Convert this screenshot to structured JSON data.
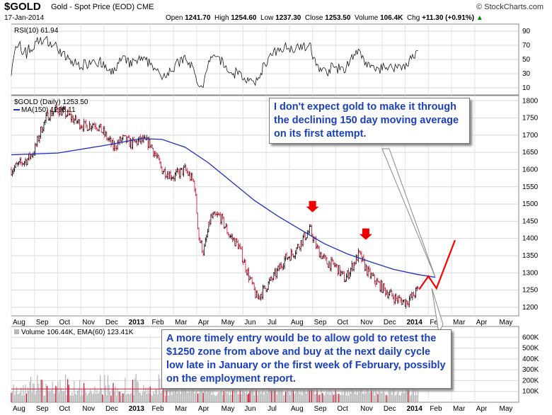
{
  "header": {
    "symbol": "$GOLD",
    "description": "Gold - Spot Price (EOD)",
    "exchange": "CME",
    "date": "17-Jan-2014",
    "open_label": "Open",
    "open": "1241.70",
    "high_label": "High",
    "high": "1254.60",
    "low_label": "Low",
    "low": "1237.30",
    "close_label": "Close",
    "close": "1253.50",
    "volume_label": "Volume",
    "volume": "106.4K",
    "chg_label": "Chg",
    "chg": "+11.30 (+0.91%)",
    "brand": "© StockCharts.com"
  },
  "colors": {
    "up": "#000000",
    "down": "#d01030",
    "ma": "#2030c0",
    "annot": "#1a3fbf",
    "arrow": "#ee0000",
    "projection": "#ff0000",
    "rsi": "#1a1a1a",
    "volume": "#b8b8b8"
  },
  "annotations": {
    "top_note": "I don't expect gold to make it through the declining 150 day moving average on its first attempt.",
    "bottom_note": "A more timely entry would be to allow gold to retest the $1250 zone from above and buy at the next daily cycle low late in January or the first week of February, possibly on the employment report."
  },
  "chart_data": [
    {
      "type": "line",
      "title": "RSI(10) 61.94",
      "y_ticks": [
        10,
        30,
        50,
        70,
        90
      ],
      "ylim": [
        0,
        100
      ]
    },
    {
      "type": "candlestick",
      "title": "$GOLD (Daily) 1253.50",
      "legend": [
        "MA(150) 1295.11"
      ],
      "x_ticks": [
        "Aug",
        "Sep",
        "Oct",
        "Nov",
        "Dec",
        "2013",
        "Feb",
        "Mar",
        "Apr",
        "May",
        "Jun",
        "Jul",
        "Aug",
        "Sep",
        "Oct",
        "Nov",
        "Dec",
        "2014",
        "Feb",
        "Mar",
        "Apr",
        "May"
      ],
      "y_ticks": [
        1200,
        1250,
        1300,
        1350,
        1400,
        1450,
        1500,
        1550,
        1600,
        1650,
        1700,
        1750,
        1800
      ],
      "ylim": [
        1175,
        1815
      ],
      "price_path": [
        {
          "m": 0,
          "v": 1600
        },
        {
          "m": 0.35,
          "v": 1615
        },
        {
          "m": 0.7,
          "v": 1630
        },
        {
          "m": 1.0,
          "v": 1655
        },
        {
          "m": 1.3,
          "v": 1720
        },
        {
          "m": 1.6,
          "v": 1760
        },
        {
          "m": 2.0,
          "v": 1775
        },
        {
          "m": 2.4,
          "v": 1760
        },
        {
          "m": 2.8,
          "v": 1740
        },
        {
          "m": 3.2,
          "v": 1725
        },
        {
          "m": 3.6,
          "v": 1735
        },
        {
          "m": 4.0,
          "v": 1705
        },
        {
          "m": 4.4,
          "v": 1665
        },
        {
          "m": 4.8,
          "v": 1690
        },
        {
          "m": 5.2,
          "v": 1675
        },
        {
          "m": 5.6,
          "v": 1685
        },
        {
          "m": 6.0,
          "v": 1675
        },
        {
          "m": 6.5,
          "v": 1600
        },
        {
          "m": 7.0,
          "v": 1580
        },
        {
          "m": 7.5,
          "v": 1600
        },
        {
          "m": 7.9,
          "v": 1560
        },
        {
          "m": 8.1,
          "v": 1400
        },
        {
          "m": 8.3,
          "v": 1360
        },
        {
          "m": 8.6,
          "v": 1460
        },
        {
          "m": 9.0,
          "v": 1465
        },
        {
          "m": 9.4,
          "v": 1410
        },
        {
          "m": 9.8,
          "v": 1380
        },
        {
          "m": 10.2,
          "v": 1300
        },
        {
          "m": 10.6,
          "v": 1225
        },
        {
          "m": 11.0,
          "v": 1260
        },
        {
          "m": 11.4,
          "v": 1295
        },
        {
          "m": 11.8,
          "v": 1340
        },
        {
          "m": 12.2,
          "v": 1360
        },
        {
          "m": 12.6,
          "v": 1400
        },
        {
          "m": 12.9,
          "v": 1425
        },
        {
          "m": 13.2,
          "v": 1370
        },
        {
          "m": 13.6,
          "v": 1330
        },
        {
          "m": 14.0,
          "v": 1320
        },
        {
          "m": 14.4,
          "v": 1280
        },
        {
          "m": 14.8,
          "v": 1330
        },
        {
          "m": 15.0,
          "v": 1355
        },
        {
          "m": 15.4,
          "v": 1300
        },
        {
          "m": 15.8,
          "v": 1270
        },
        {
          "m": 16.2,
          "v": 1245
        },
        {
          "m": 16.6,
          "v": 1225
        },
        {
          "m": 17.0,
          "v": 1215
        },
        {
          "m": 17.3,
          "v": 1230
        },
        {
          "m": 17.55,
          "v": 1252
        }
      ],
      "ma150_path": [
        {
          "m": 0,
          "v": 1643
        },
        {
          "m": 2,
          "v": 1648
        },
        {
          "m": 4,
          "v": 1670
        },
        {
          "m": 5.6,
          "v": 1690
        },
        {
          "m": 6.5,
          "v": 1688
        },
        {
          "m": 7.5,
          "v": 1665
        },
        {
          "m": 8.5,
          "v": 1620
        },
        {
          "m": 9.5,
          "v": 1565
        },
        {
          "m": 10.5,
          "v": 1510
        },
        {
          "m": 11.5,
          "v": 1465
        },
        {
          "m": 12.5,
          "v": 1425
        },
        {
          "m": 13.5,
          "v": 1385
        },
        {
          "m": 14.5,
          "v": 1355
        },
        {
          "m": 15.5,
          "v": 1332
        },
        {
          "m": 16.5,
          "v": 1310
        },
        {
          "m": 17.55,
          "v": 1295
        },
        {
          "m": 18.3,
          "v": 1287
        }
      ],
      "projection_path": [
        {
          "m": 17.6,
          "v": 1252
        },
        {
          "m": 18.0,
          "v": 1290
        },
        {
          "m": 18.35,
          "v": 1255
        },
        {
          "m": 19.15,
          "v": 1395
        }
      ],
      "arrow_markers": [
        {
          "m": 13.0,
          "v": 1480
        },
        {
          "m": 15.3,
          "v": 1400
        }
      ]
    },
    {
      "type": "bar",
      "title": "Volume 106.44K, EMA(60) 123.41K",
      "y_ticks": [
        "100K",
        "200K",
        "300K",
        "400K",
        "500K",
        "600K"
      ],
      "ylim": [
        0,
        700
      ],
      "x_ticks": [
        "Aug",
        "Sep",
        "Oct",
        "Nov",
        "Dec",
        "2013",
        "Feb",
        "Mar",
        "Apr",
        "May",
        "Jun",
        "Jul",
        "Aug",
        "Sep",
        "Oct",
        "Nov",
        "Dec",
        "2014",
        "Feb",
        "Mar",
        "Apr",
        "May"
      ]
    }
  ]
}
